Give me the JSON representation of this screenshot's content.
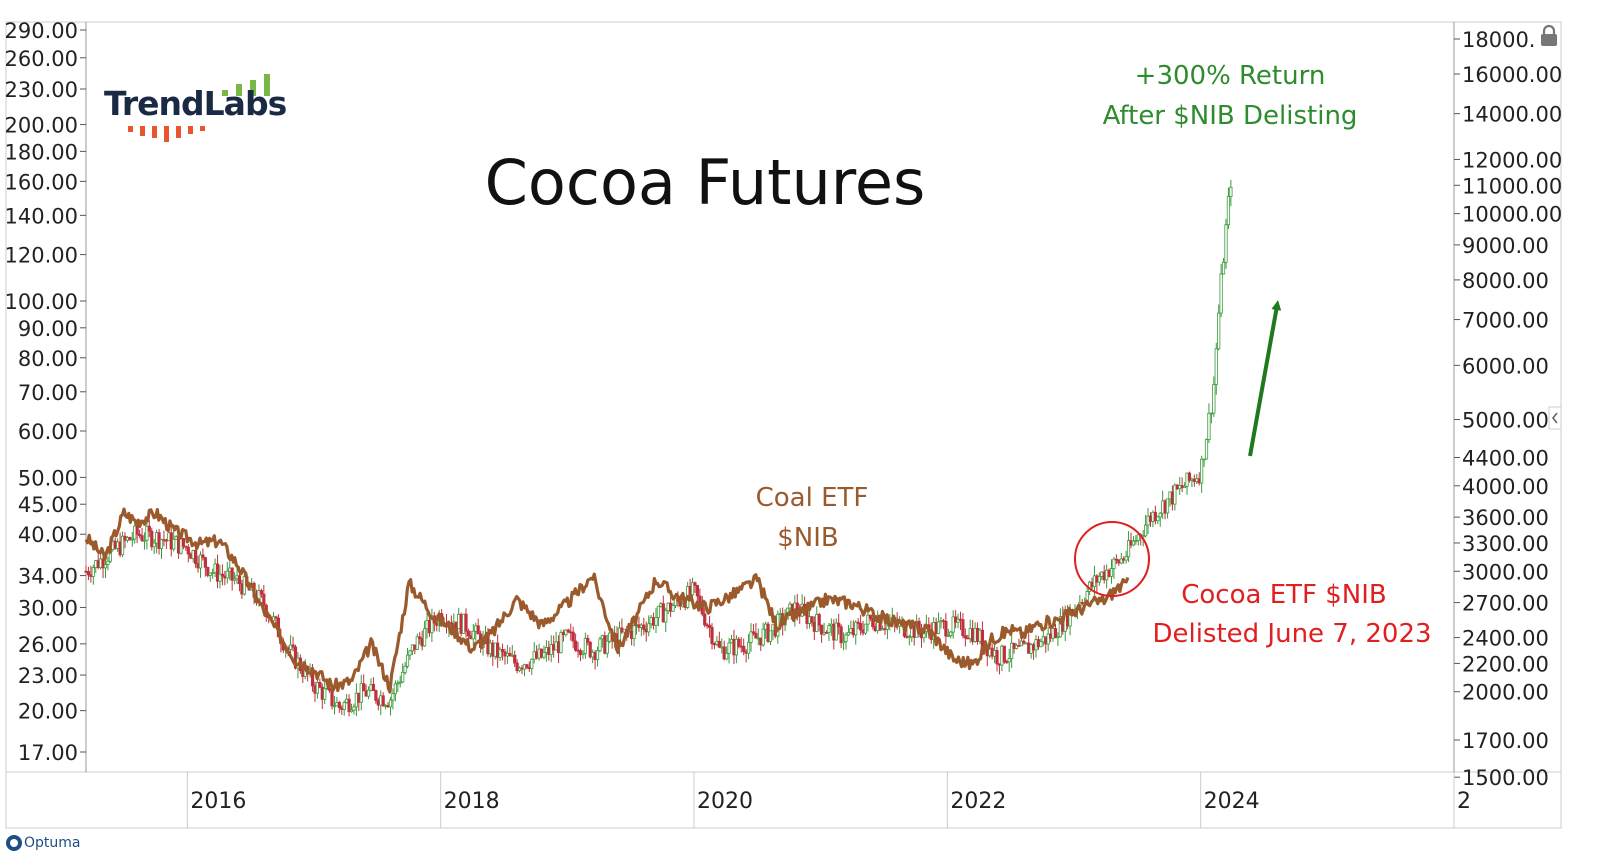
{
  "logo": {
    "text": "TrendLabs"
  },
  "footer": {
    "brand": "Optuma"
  },
  "colors": {
    "cocoa_line": "#9b5a2c",
    "candle_up": "#3a9a3a",
    "candle_down": "#c0303c",
    "arrow": "#1f7a1f",
    "green_annotation": "#2e8b2e",
    "red_annotation": "#e02020",
    "circle": "#e02020"
  },
  "icons": {
    "lock": "lock-icon",
    "scroll": "chevron-left-icon"
  },
  "chart_data": {
    "type": "line",
    "title": "Cocoa Futures",
    "x_ticks": [
      "2016",
      "2018",
      "2020",
      "2022",
      "2024",
      "2"
    ],
    "x_range": [
      2015.2,
      2026.0
    ],
    "left_axis": {
      "scale": "log",
      "range": [
        16,
        290
      ],
      "ticks": [
        "290.00",
        "260.00",
        "230.00",
        "200.00",
        "180.00",
        "160.00",
        "140.00",
        "120.00",
        "100.00",
        "90.00",
        "80.00",
        "70.00",
        "60.00",
        "50.00",
        "45.00",
        "40.00",
        "34.00",
        "30.00",
        "26.00",
        "23.00",
        "20.00",
        "17.00"
      ]
    },
    "right_axis": {
      "scale": "log",
      "range": [
        1500,
        18000
      ],
      "ticks": [
        "18000.",
        "16000.00",
        "14000.00",
        "12000.00",
        "11000.00",
        "10000.00",
        "9000.00",
        "8000.00",
        "7000.00",
        "6000.00",
        "5000.00",
        "4400.00",
        "4000.00",
        "3600.00",
        "3300.00",
        "3000.00",
        "2700.00",
        "2400.00",
        "2200.00",
        "2000.00",
        "1700.00",
        "1500.00"
      ]
    },
    "series": [
      {
        "name": "Coal ETF $NIB",
        "axis": "left",
        "x": [
          2015.2,
          2015.35,
          2015.5,
          2015.6,
          2015.75,
          2015.9,
          2016.1,
          2016.25,
          2016.4,
          2016.55,
          2016.7,
          2016.85,
          2017.0,
          2017.15,
          2017.3,
          2017.45,
          2017.6,
          2017.75,
          2017.95,
          2018.1,
          2018.25,
          2018.4,
          2018.6,
          2018.8,
          2019.0,
          2019.2,
          2019.4,
          2019.55,
          2019.7,
          2019.85,
          2020.1,
          2020.3,
          2020.5,
          2020.65,
          2020.85,
          2021.05,
          2021.25,
          2021.45,
          2021.65,
          2021.85,
          2022.05,
          2022.2,
          2022.35,
          2022.5,
          2022.6,
          2022.7,
          2022.85,
          2023.0,
          2023.15,
          2023.25,
          2023.35,
          2023.43
        ],
        "y": [
          39.5,
          36.5,
          43.5,
          42.0,
          43.5,
          40.5,
          38.5,
          39.0,
          35.5,
          31.0,
          27.5,
          24.5,
          23.5,
          22.0,
          22.5,
          26.0,
          22.0,
          33.0,
          29.0,
          27.5,
          25.5,
          27.0,
          31.0,
          28.0,
          30.5,
          34.0,
          25.5,
          29.0,
          33.5,
          31.5,
          30.0,
          31.5,
          33.5,
          28.0,
          29.5,
          31.0,
          30.5,
          29.0,
          28.0,
          27.5,
          24.5,
          24.0,
          26.5,
          27.5,
          27.0,
          28.0,
          28.5,
          29.5,
          30.5,
          31.0,
          32.5,
          33.0
        ]
      },
      {
        "name": "Cocoa Futures",
        "axis": "right",
        "x": [
          2015.2,
          2015.4,
          2015.6,
          2015.8,
          2016.0,
          2016.2,
          2016.4,
          2016.6,
          2016.8,
          2017.0,
          2017.2,
          2017.4,
          2017.6,
          2017.8,
          2018.0,
          2018.2,
          2018.4,
          2018.6,
          2018.8,
          2019.0,
          2019.2,
          2019.4,
          2019.6,
          2019.8,
          2020.0,
          2020.2,
          2020.4,
          2020.6,
          2020.8,
          2021.0,
          2021.2,
          2021.4,
          2021.6,
          2021.8,
          2022.0,
          2022.2,
          2022.4,
          2022.6,
          2022.8,
          2023.0,
          2023.2,
          2023.4,
          2023.6,
          2023.8,
          2024.0,
          2024.1,
          2024.15,
          2024.2,
          2024.25
        ],
        "y": [
          3000,
          3200,
          3400,
          3350,
          3250,
          3000,
          2900,
          2700,
          2300,
          2050,
          1900,
          2000,
          1950,
          2350,
          2600,
          2500,
          2300,
          2200,
          2250,
          2400,
          2300,
          2400,
          2500,
          2650,
          2800,
          2300,
          2350,
          2450,
          2650,
          2500,
          2400,
          2550,
          2500,
          2450,
          2500,
          2450,
          2250,
          2300,
          2400,
          2650,
          2950,
          3150,
          3600,
          3900,
          4200,
          5500,
          7500,
          9500,
          11800
        ]
      }
    ],
    "annotations": [
      {
        "text": "Coal ETF",
        "color": "#9b5a2c"
      },
      {
        "text": "$NIB",
        "color": "#9b5a2c"
      },
      {
        "text": "+300% Return",
        "color": "#2e8b2e"
      },
      {
        "text": "After $NIB Delisting",
        "color": "#2e8b2e"
      },
      {
        "text": "Cocoa ETF $NIB",
        "color": "#e02020"
      },
      {
        "text": "Delisted June 7, 2023",
        "color": "#e02020"
      }
    ]
  }
}
